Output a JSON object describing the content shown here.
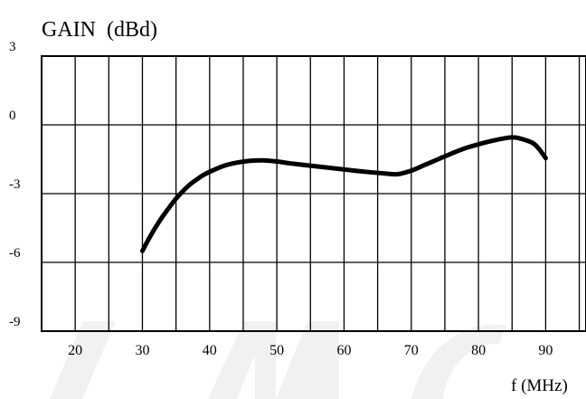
{
  "chart_data": {
    "type": "line",
    "title": "",
    "xlabel": "f (MHz)",
    "ylabel": "GAIN  (dBd)",
    "xlim": [
      15,
      96
    ],
    "ylim": [
      -9,
      3
    ],
    "x_ticks": [
      20,
      30,
      40,
      50,
      60,
      70,
      80,
      90
    ],
    "x_tick_labels": [
      "20",
      "30",
      "40",
      "50",
      "60",
      "70",
      "80",
      "90"
    ],
    "y_ticks": [
      3,
      0,
      -3,
      -6,
      -9
    ],
    "y_tick_labels": [
      "3",
      "0",
      "-3",
      "-6",
      "-9"
    ],
    "grid": true,
    "colors": {
      "line": "#000000",
      "grid": "#000000",
      "background": "#ffffff",
      "watermark": "#f1f1f1"
    },
    "series": [
      {
        "name": "",
        "x": [
          30,
          31,
          32,
          33,
          34,
          35,
          36,
          37,
          38,
          39,
          40,
          42,
          44,
          46,
          48,
          50,
          52,
          55,
          58,
          61,
          64,
          66,
          68,
          70,
          72,
          74,
          76,
          78,
          80,
          82,
          84,
          85,
          86,
          88,
          89,
          90
        ],
        "y": [
          -5.5,
          -4.95,
          -4.45,
          -4.0,
          -3.6,
          -3.22,
          -2.9,
          -2.62,
          -2.4,
          -2.2,
          -2.05,
          -1.8,
          -1.65,
          -1.57,
          -1.55,
          -1.6,
          -1.68,
          -1.78,
          -1.88,
          -1.98,
          -2.07,
          -2.12,
          -2.15,
          -2.0,
          -1.75,
          -1.5,
          -1.25,
          -1.02,
          -0.85,
          -0.7,
          -0.58,
          -0.55,
          -0.58,
          -0.78,
          -1.05,
          -1.45
        ]
      }
    ]
  }
}
